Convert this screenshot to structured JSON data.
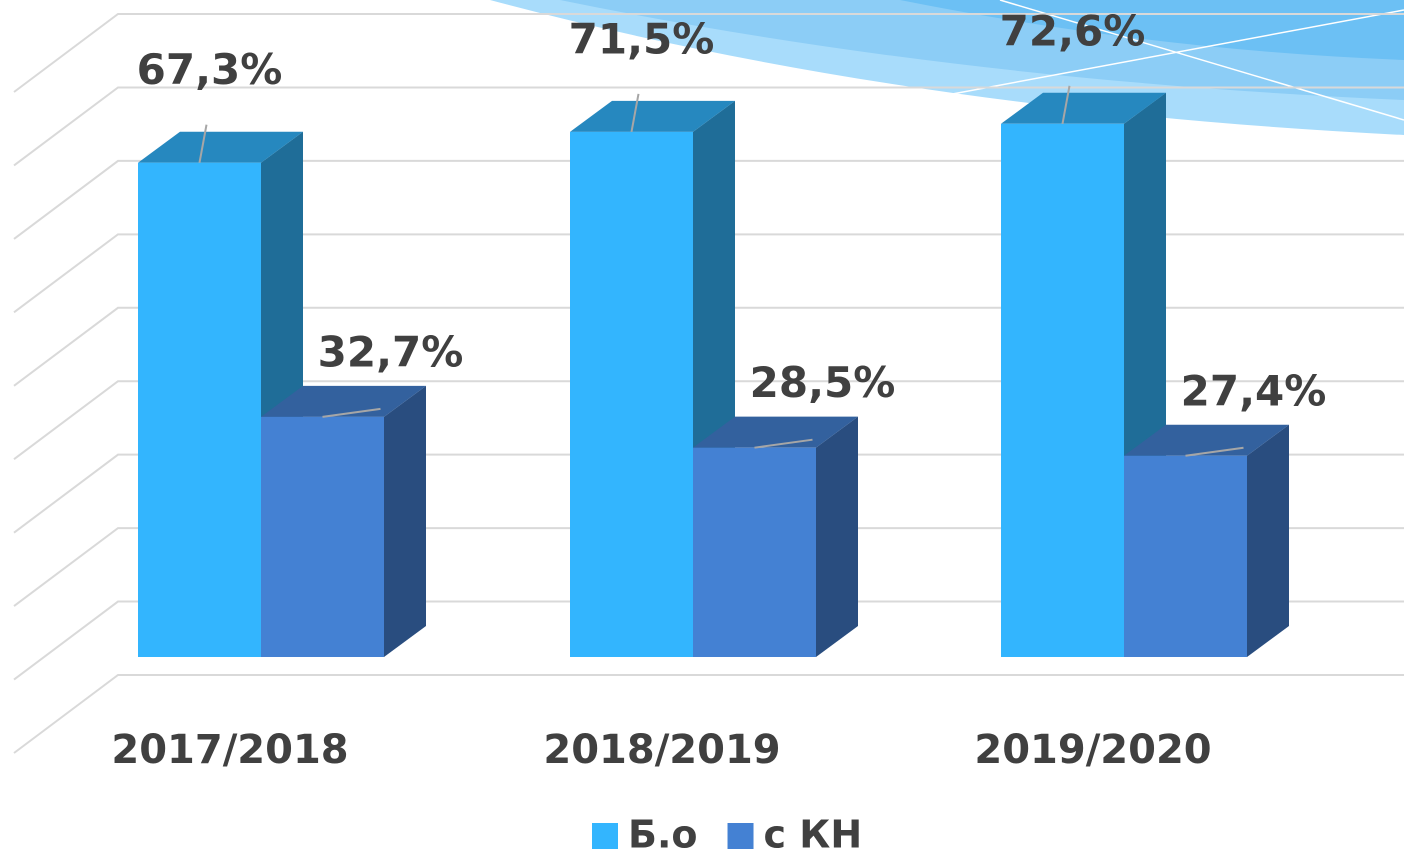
{
  "chart_data": {
    "type": "bar3d",
    "categories": [
      "2017/2018",
      "2018/2019",
      "2019/2020"
    ],
    "series": [
      {
        "name": "Б.о",
        "color": "#33b5fe",
        "values": [
          67.3,
          71.5,
          72.6
        ],
        "value_labels": [
          "67,3%",
          "71,5%",
          "72,6%"
        ]
      },
      {
        "name": "с КН",
        "color": "#4481d3",
        "values": [
          32.7,
          28.5,
          27.4
        ],
        "value_labels": [
          "32,7%",
          "28,5%",
          "27,4%"
        ]
      }
    ],
    "ylim": [
      0,
      90
    ],
    "yticks": [
      0,
      10,
      20,
      30,
      40,
      50,
      60,
      70,
      80,
      90
    ],
    "grid": true,
    "legend": "bottom"
  }
}
